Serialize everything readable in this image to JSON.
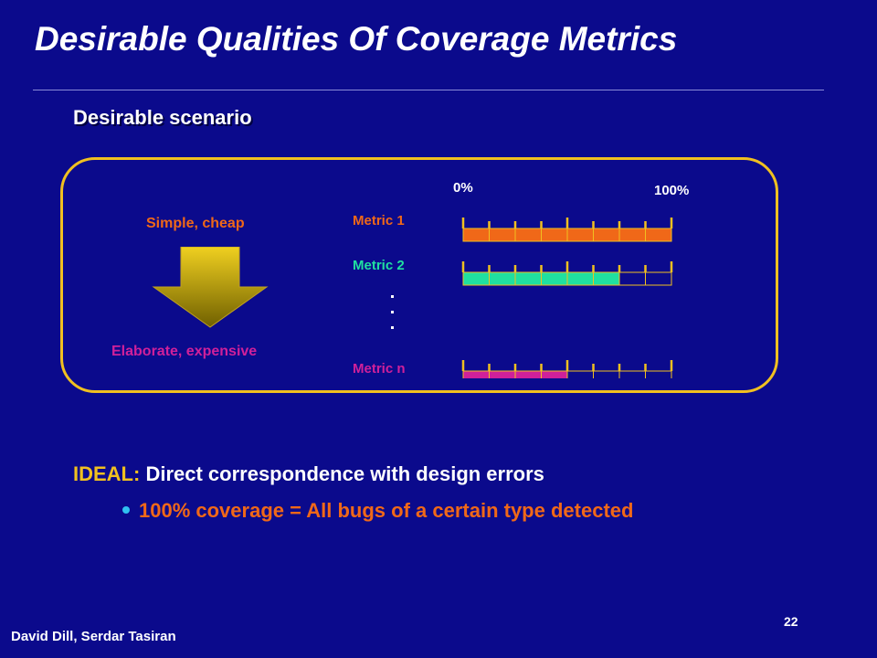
{
  "slide": {
    "title": "Desirable Qualities Of Coverage Metrics",
    "subtitle": "Desirable scenario",
    "page_number": "22",
    "author": "David Dill,  Serdar Tasiran"
  },
  "diagram": {
    "top_label": "Simple, cheap",
    "bottom_label": "Elaborate, expensive",
    "scale_start": "0%",
    "scale_end": "100%",
    "colors": {
      "border": "#f0c020",
      "arrow_top": "#f0d020",
      "arrow_bottom": "#706000"
    },
    "metrics": [
      {
        "label": "Metric 1",
        "color": "#f06818",
        "filled_fraction": 1.0
      },
      {
        "label": "Metric 2",
        "color": "#20e0a0",
        "filled_fraction": 0.75
      },
      {
        "label": "Metric n",
        "color": "#d0209a",
        "filled_fraction": 0.5
      }
    ],
    "segments": 8
  },
  "ideal": {
    "key": "IDEAL:",
    "text": " Direct correspondence with design errors",
    "bullet": "100% coverage = All bugs of a certain type detected"
  }
}
